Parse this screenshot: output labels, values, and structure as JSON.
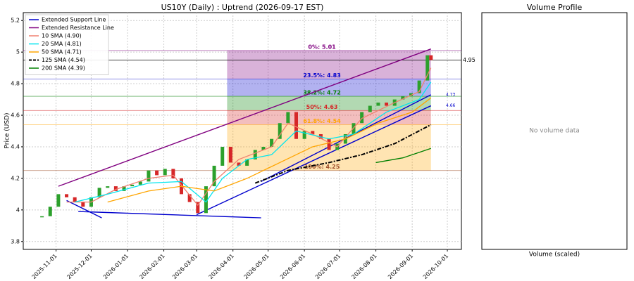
{
  "chart_data": [
    {
      "type": "candlestick",
      "title": "US10Y (Daily) : Uptrend (2026-09-17 EST)",
      "ylabel": "Price (USD)",
      "xlim": [
        "2025-10-04",
        "2026-10-13"
      ],
      "xticks": [
        "2025-11-01",
        "2025-12-01",
        "2026-01-01",
        "2026-02-01",
        "2026-03-01",
        "2026-04-01",
        "2026-05-01",
        "2026-06-01",
        "2026-07-01",
        "2026-08-01",
        "2026-09-01",
        "2026-10-01"
      ],
      "ylim": [
        3.75,
        5.25
      ],
      "yticks": [
        3.8,
        4.0,
        4.2,
        4.4,
        4.6,
        4.8,
        5.0,
        5.2
      ],
      "grid": true,
      "candles": {
        "up_color": "#2ca02c",
        "down_color": "#d62728",
        "x": [
          "2025-10-20",
          "2025-10-27",
          "2025-11-03",
          "2025-11-10",
          "2025-11-17",
          "2025-11-24",
          "2025-12-01",
          "2025-12-08",
          "2025-12-15",
          "2025-12-22",
          "2025-12-29",
          "2026-01-05",
          "2026-01-12",
          "2026-01-19",
          "2026-01-26",
          "2026-02-02",
          "2026-02-09",
          "2026-02-16",
          "2026-02-23",
          "2026-03-02",
          "2026-03-09",
          "2026-03-16",
          "2026-03-23",
          "2026-03-30",
          "2026-04-06",
          "2026-04-13",
          "2026-04-20",
          "2026-04-27",
          "2026-05-04",
          "2026-05-11",
          "2026-05-18",
          "2026-05-25",
          "2026-06-01",
          "2026-06-08",
          "2026-06-15",
          "2026-06-22",
          "2026-06-29",
          "2026-07-06",
          "2026-07-13",
          "2026-07-20",
          "2026-07-27",
          "2026-08-03",
          "2026-08-10",
          "2026-08-17",
          "2026-08-24",
          "2026-08-31",
          "2026-09-07",
          "2026-09-14",
          "2026-09-17"
        ],
        "values": [
          3.96,
          4.02,
          4.1,
          4.08,
          4.05,
          4.02,
          4.08,
          4.14,
          4.15,
          4.12,
          4.15,
          4.16,
          4.18,
          4.25,
          4.22,
          4.26,
          4.2,
          4.1,
          4.05,
          3.98,
          4.15,
          4.28,
          4.4,
          4.3,
          4.28,
          4.32,
          4.38,
          4.4,
          4.45,
          4.55,
          4.62,
          4.45,
          4.5,
          4.48,
          4.45,
          4.38,
          4.42,
          4.48,
          4.55,
          4.62,
          4.66,
          4.68,
          4.66,
          4.7,
          4.72,
          4.74,
          4.82,
          4.98,
          4.95
        ]
      },
      "series": [
        {
          "name": "10 SMA (4.90)",
          "color": "#f08070",
          "x": [
            "2025-11-10",
            "2025-12-01",
            "2025-12-22",
            "2026-01-19",
            "2026-02-09",
            "2026-03-02",
            "2026-03-16",
            "2026-04-06",
            "2026-05-04",
            "2026-05-18",
            "2026-06-08",
            "2026-06-29",
            "2026-07-20",
            "2026-08-17",
            "2026-09-07",
            "2026-09-17"
          ],
          "values": [
            4.05,
            4.05,
            4.13,
            4.2,
            4.22,
            4.03,
            4.18,
            4.32,
            4.4,
            4.55,
            4.48,
            4.4,
            4.58,
            4.68,
            4.75,
            4.9
          ]
        },
        {
          "name": "20 SMA (4.81)",
          "color": "#00e5ee",
          "x": [
            "2025-11-17",
            "2025-12-15",
            "2026-01-19",
            "2026-02-16",
            "2026-03-09",
            "2026-03-23",
            "2026-04-13",
            "2026-05-04",
            "2026-05-25",
            "2026-06-22",
            "2026-07-13",
            "2026-08-10",
            "2026-09-07",
            "2026-09-17"
          ],
          "values": [
            4.05,
            4.1,
            4.17,
            4.18,
            4.05,
            4.2,
            4.32,
            4.35,
            4.5,
            4.45,
            4.48,
            4.62,
            4.7,
            4.81
          ]
        },
        {
          "name": "50 SMA (4.71)",
          "color": "#ffa500",
          "x": [
            "2025-12-15",
            "2026-01-19",
            "2026-02-16",
            "2026-03-16",
            "2026-04-13",
            "2026-05-11",
            "2026-06-08",
            "2026-07-06",
            "2026-08-03",
            "2026-09-01",
            "2026-09-17"
          ],
          "values": [
            4.05,
            4.12,
            4.15,
            4.12,
            4.2,
            4.3,
            4.4,
            4.45,
            4.55,
            4.62,
            4.71
          ]
        },
        {
          "name": "125 SMA (4.54)",
          "color": "#000000",
          "dash": true,
          "x": [
            "2026-04-20",
            "2026-05-18",
            "2026-06-22",
            "2026-07-20",
            "2026-08-17",
            "2026-09-17"
          ],
          "values": [
            4.17,
            4.25,
            4.3,
            4.35,
            4.42,
            4.54
          ]
        },
        {
          "name": "200 SMA (4.39)",
          "color": "#008000",
          "x": [
            "2026-08-01",
            "2026-08-24",
            "2026-09-17"
          ],
          "values": [
            4.3,
            4.33,
            4.39
          ]
        }
      ],
      "trend_lines": [
        {
          "name": "Extended Support Line",
          "color": "#0000cd",
          "segments": [
            {
              "x": [
                "2025-11-10",
                "2025-12-10"
              ],
              "values": [
                4.06,
                3.95
              ]
            },
            {
              "x": [
                "2025-11-20",
                "2026-04-25"
              ],
              "values": [
                3.99,
                3.95
              ]
            },
            {
              "x": [
                "2026-03-01",
                "2026-09-17"
              ],
              "values": [
                3.97,
                4.66
              ]
            },
            {
              "x": [
                "2026-04-25",
                "2026-09-17"
              ],
              "values": [
                4.18,
                4.73
              ]
            }
          ]
        },
        {
          "name": "Extended Resistance Line",
          "color": "#800080",
          "segments": [
            {
              "x": [
                "2025-11-03",
                "2026-09-17"
              ],
              "values": [
                4.15,
                5.02
              ]
            }
          ]
        }
      ],
      "fib": {
        "x": [
          "2026-03-27",
          "2026-09-17"
        ],
        "levels": [
          {
            "label": "0%: 5.01",
            "value": 5.01,
            "color": "#800080"
          },
          {
            "label": "23.5%: 4.83",
            "value": 4.83,
            "color": "#0000cd"
          },
          {
            "label": "38.2%: 4.72",
            "value": 4.72,
            "color": "#008000"
          },
          {
            "label": "50%: 4.63",
            "value": 4.63,
            "color": "#d62728"
          },
          {
            "label": "61.8%: 4.54",
            "value": 4.54,
            "color": "#ffa500"
          },
          {
            "label": "100%: 4.25",
            "value": 4.25,
            "color": "#a0522d"
          }
        ]
      },
      "annotations": [
        {
          "value": 4.95,
          "label": "4.95",
          "color": "#000000"
        },
        {
          "value": 4.73,
          "label": "4.73",
          "color": "#0000cd"
        },
        {
          "value": 4.66,
          "label": "4.66",
          "color": "#0000cd"
        }
      ],
      "legend": "upper left"
    },
    {
      "type": "empty",
      "title": "Volume Profile",
      "message": "No volume data",
      "xlabel": "Volume (scaled)"
    }
  ]
}
